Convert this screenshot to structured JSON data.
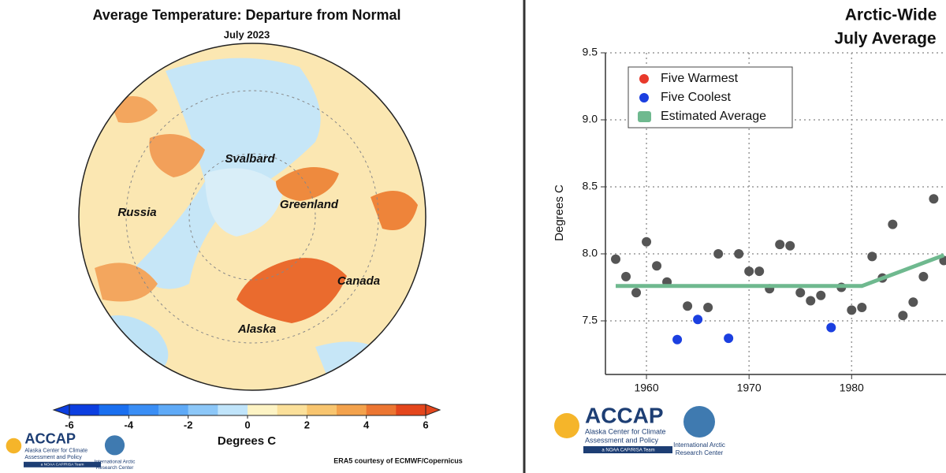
{
  "map": {
    "title": "Average Temperature: Departure from Normal",
    "subtitle": "July 2023",
    "labels": [
      "Svalbard",
      "Russia",
      "Greenland",
      "Canada",
      "Alaska"
    ],
    "colorbar": {
      "lim": [
        -6,
        6
      ],
      "ticks": [
        -6,
        -4,
        -2,
        0,
        2,
        4,
        6
      ],
      "label": "Degrees C",
      "colors": [
        "#0c3ee0",
        "#1a6ff0",
        "#3a8ef5",
        "#5faaf7",
        "#8cc7f8",
        "#c0e4fa",
        "#fdf3c4",
        "#fbe09a",
        "#f8c56f",
        "#f3a24c",
        "#ec7632",
        "#e4461c"
      ]
    },
    "credit": "ERA5 courtesy of ECMWF/Copernicus"
  },
  "logos": {
    "accap": "ACCAP",
    "accap_lines": [
      "Alaska Center for Climate",
      "Assessment and Policy"
    ],
    "accap_tag": "a NOAA CAP/RISA Team",
    "iarc": [
      "International Arctic",
      "Research Center"
    ]
  },
  "chart_data": {
    "type": "scatter",
    "title": [
      "Arctic-Wide",
      "July Average"
    ],
    "y_label": "Degrees C",
    "xlim": [
      1956,
      1989.2
    ],
    "xticks": [
      1960,
      1970,
      1980
    ],
    "ylim": [
      7.1,
      9.5
    ],
    "yticks": [
      {
        "value": 7.5,
        "label": "7.5"
      },
      {
        "value": 8,
        "label": "8.0"
      },
      {
        "value": 8.5,
        "label": "8.5"
      },
      {
        "value": 9,
        "label": "9.0"
      },
      {
        "value": 9.5,
        "label": "9.5"
      }
    ],
    "grid": true,
    "legend": "upper left",
    "series": [
      {
        "color": "#555555",
        "style": "point",
        "x": [
          1957,
          1958,
          1959,
          1960,
          1961,
          1962,
          1964,
          1966,
          1967,
          1969,
          1970,
          1971,
          1972,
          1973,
          1974,
          1975,
          1976,
          1977,
          1979,
          1980,
          1981,
          1982,
          1983,
          1984,
          1985,
          1986,
          1987,
          1988,
          1989
        ],
        "values": [
          7.96,
          7.83,
          7.71,
          8.09,
          7.91,
          7.79,
          7.61,
          7.6,
          8.0,
          8.0,
          7.87,
          7.87,
          7.74,
          8.07,
          8.06,
          7.71,
          7.65,
          7.69,
          7.75,
          7.58,
          7.6,
          7.98,
          7.82,
          8.22,
          7.54,
          7.64,
          7.83,
          8.41,
          7.95
        ]
      },
      {
        "name": "Five Warmest",
        "color": "#e8392b",
        "style": "point",
        "x": [],
        "values": []
      },
      {
        "name": "Five Coolest",
        "color": "#1b3fe0",
        "style": "point",
        "x": [
          1963,
          1965,
          1968,
          1978
        ],
        "values": [
          7.36,
          7.51,
          7.37,
          7.45
        ]
      },
      {
        "name": "Estimated Average",
        "color": "#6fb98f",
        "style": "line",
        "x": [
          1957,
          1981,
          1989
        ],
        "values": [
          7.76,
          7.76,
          7.99
        ]
      }
    ]
  }
}
